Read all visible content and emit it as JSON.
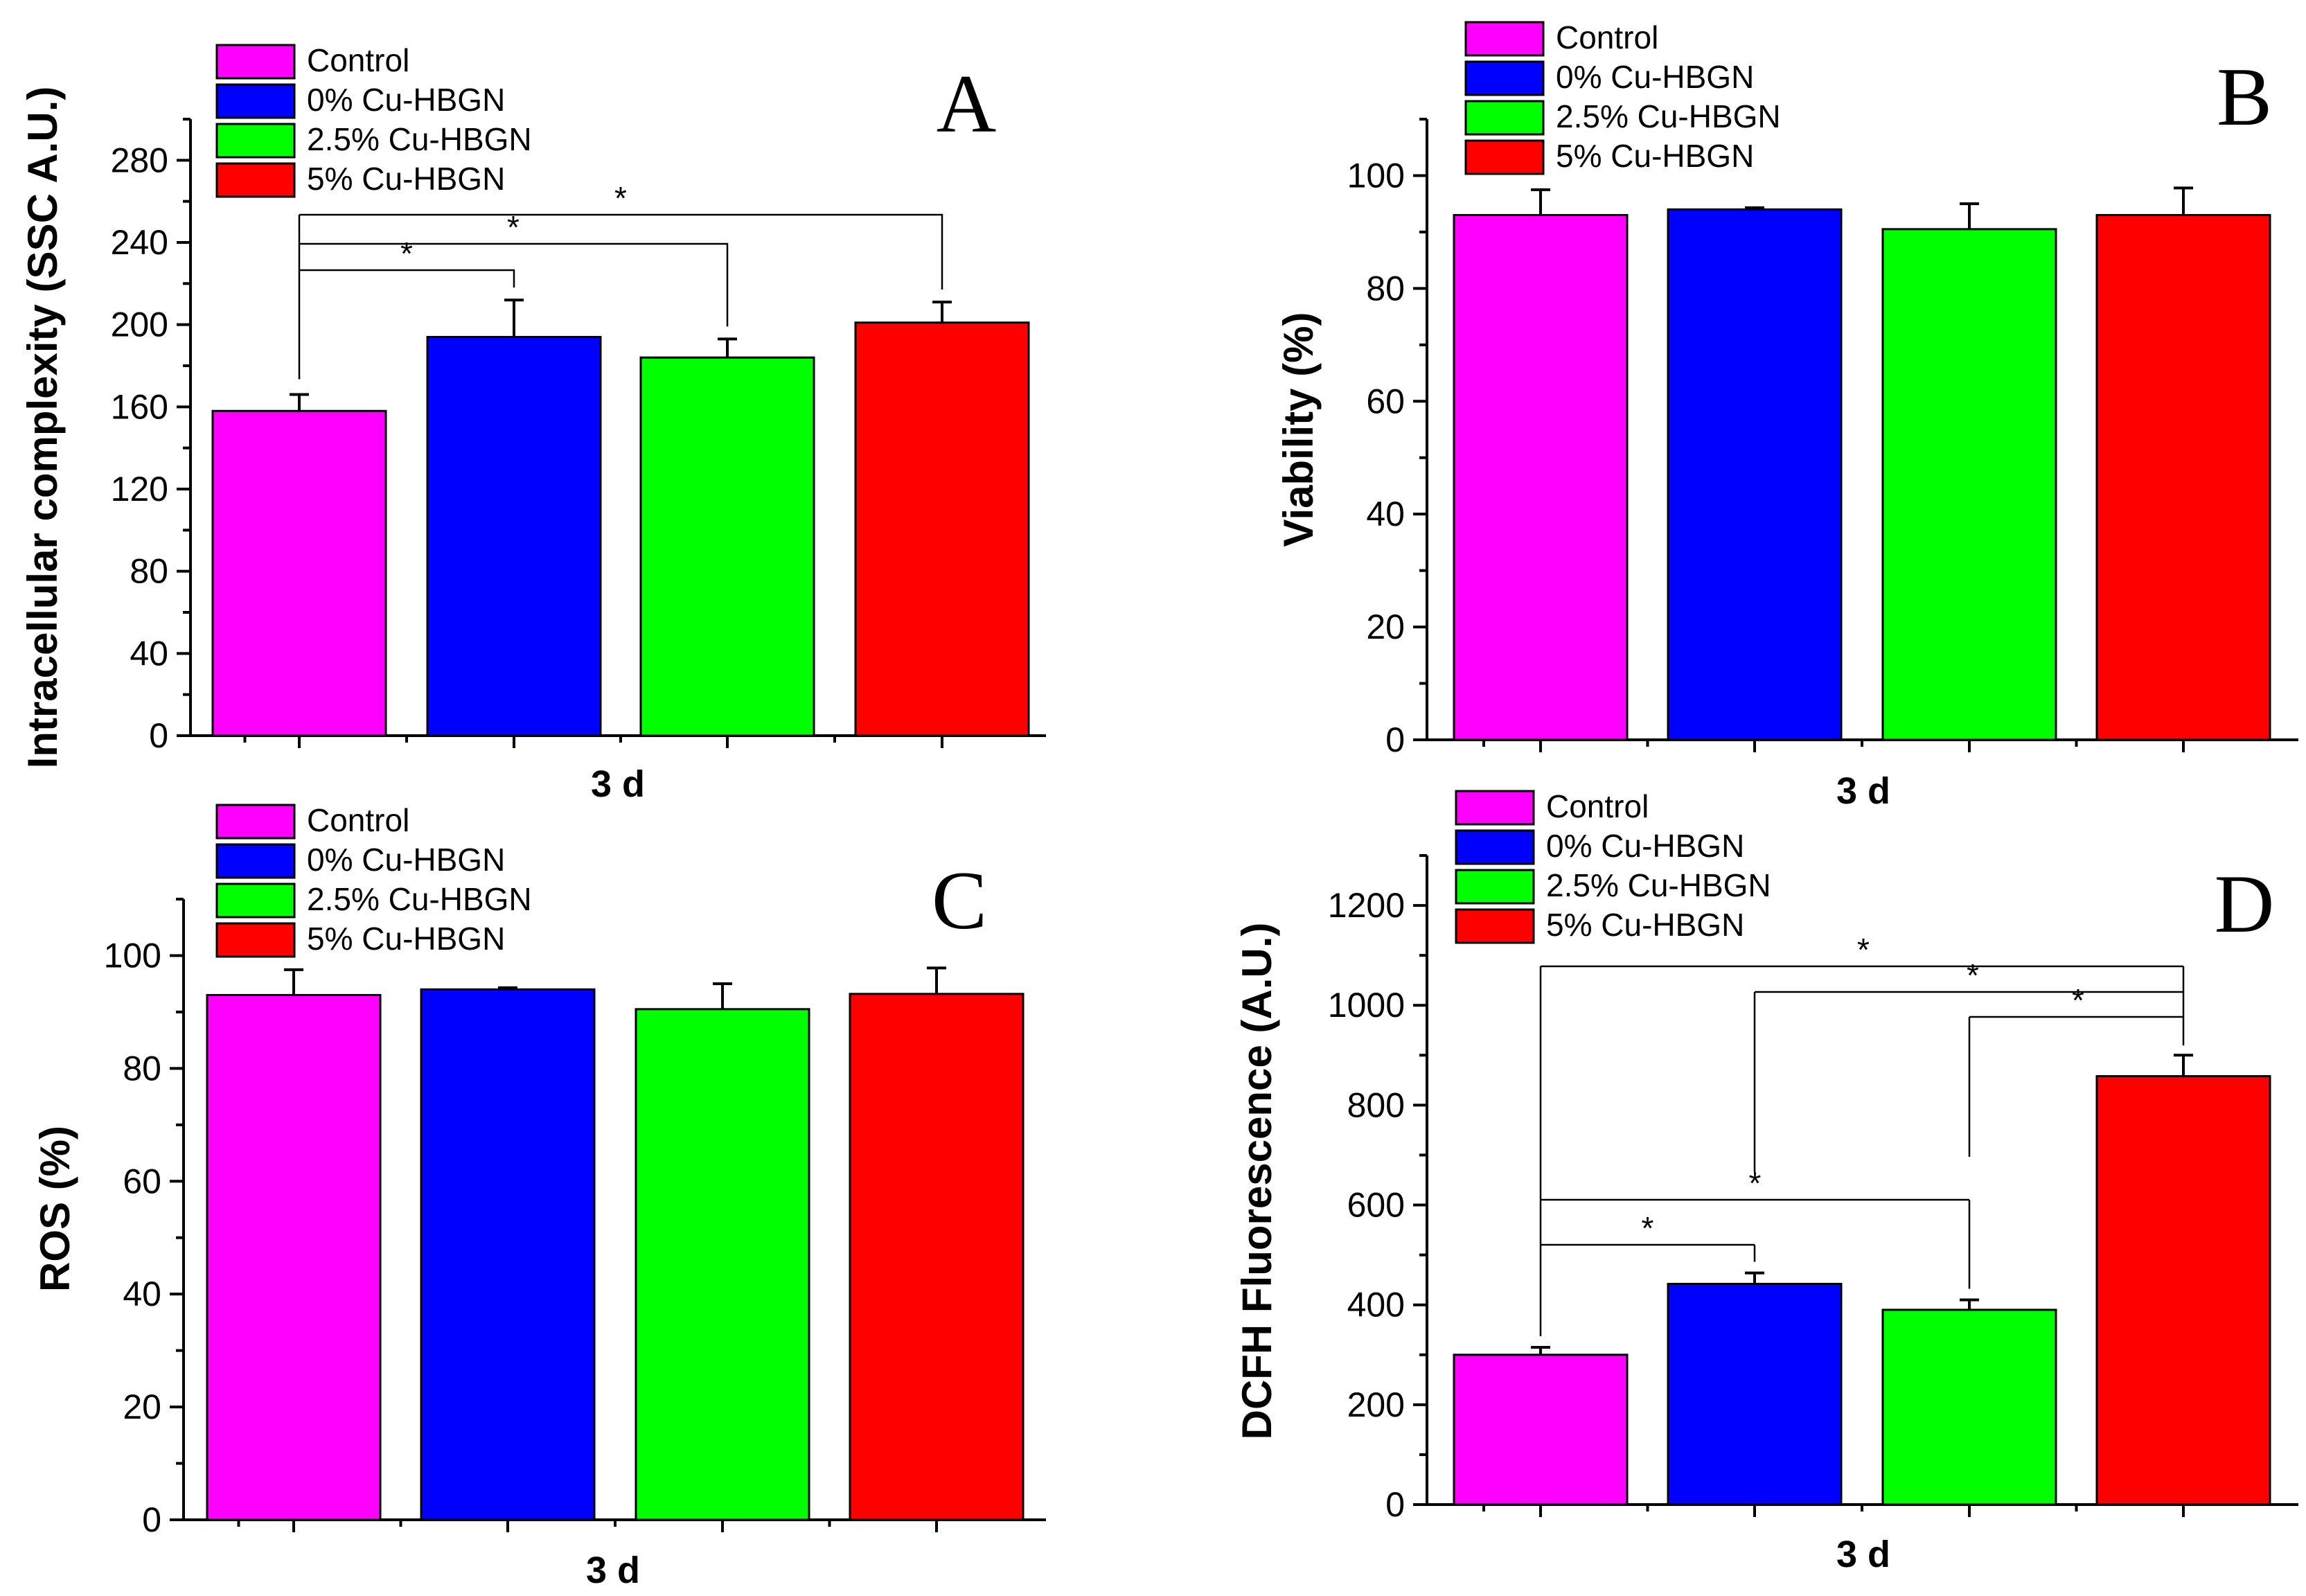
{
  "figure": "4-panel bar chart figure",
  "legend_items": [
    {
      "label": "Control",
      "color": "#FF00FF"
    },
    {
      "label": "0% Cu-HBGN",
      "color": "#0000FF"
    },
    {
      "label": "2.5% Cu-HBGN",
      "color": "#00FF00"
    },
    {
      "label": "5% Cu-HBGN",
      "color": "#FF0000"
    }
  ],
  "chart_data": [
    {
      "panel": "A",
      "type": "bar",
      "xlabel": "3 d",
      "ylabel": "Intracellular complexity (SSC A.U.)",
      "categories": [
        "Control",
        "0% Cu-HBGN",
        "2.5% Cu-HBGN",
        "5% Cu-HBGN"
      ],
      "colors": [
        "#FF00FF",
        "#0000FF",
        "#00FF00",
        "#FF0000"
      ],
      "values": [
        158,
        194,
        184,
        201
      ],
      "errors": [
        8,
        18,
        9,
        10
      ],
      "ylim": [
        0,
        300
      ],
      "yticks": [
        0,
        40,
        80,
        120,
        160,
        200,
        240,
        280
      ],
      "significance": [
        {
          "from": 0,
          "to": 1,
          "label": "*"
        },
        {
          "from": 0,
          "to": 2,
          "label": "*"
        },
        {
          "from": 0,
          "to": 3,
          "label": "*"
        }
      ]
    },
    {
      "panel": "B",
      "type": "bar",
      "xlabel": "3 d",
      "ylabel": "Viability (%)",
      "categories": [
        "Control",
        "0% Cu-HBGN",
        "2.5% Cu-HBGN",
        "5% Cu-HBGN"
      ],
      "colors": [
        "#FF00FF",
        "#0000FF",
        "#00FF00",
        "#FF0000"
      ],
      "values": [
        93,
        94,
        90.5,
        93
      ],
      "errors": [
        4.5,
        0.3,
        4.5,
        4.8
      ],
      "ylim": [
        0,
        110
      ],
      "yticks": [
        0,
        20,
        40,
        60,
        80,
        100
      ],
      "significance": []
    },
    {
      "panel": "C",
      "type": "bar",
      "xlabel": "3 d",
      "ylabel": "ROS (%)",
      "categories": [
        "Control",
        "0% Cu-HBGN",
        "2.5% Cu-HBGN",
        "5% Cu-HBGN"
      ],
      "colors": [
        "#FF00FF",
        "#0000FF",
        "#00FF00",
        "#FF0000"
      ],
      "values": [
        93,
        94,
        90.5,
        93.2
      ],
      "errors": [
        4.5,
        0.3,
        4.5,
        4.6
      ],
      "ylim": [
        0,
        110
      ],
      "yticks": [
        0,
        20,
        40,
        60,
        80,
        100
      ],
      "significance": []
    },
    {
      "panel": "D",
      "type": "bar",
      "xlabel": "3 d",
      "ylabel": "DCFH Fluorescence (A.U.)",
      "categories": [
        "Control",
        "0% Cu-HBGN",
        "2.5% Cu-HBGN",
        "5% Cu-HBGN"
      ],
      "colors": [
        "#FF00FF",
        "#0000FF",
        "#00FF00",
        "#FF0000"
      ],
      "values": [
        300,
        442,
        390,
        858
      ],
      "errors": [
        15,
        22,
        20,
        42
      ],
      "ylim": [
        0,
        1300
      ],
      "yticks": [
        0,
        200,
        400,
        600,
        800,
        1000,
        1200
      ],
      "significance": [
        {
          "from": 0,
          "to": 1,
          "label": "*"
        },
        {
          "from": 0,
          "to": 2,
          "label": "*"
        },
        {
          "from": 0,
          "to": 3,
          "label": "*"
        },
        {
          "from": 1,
          "to": 3,
          "label": "*"
        },
        {
          "from": 2,
          "to": 3,
          "label": "*"
        }
      ]
    }
  ]
}
